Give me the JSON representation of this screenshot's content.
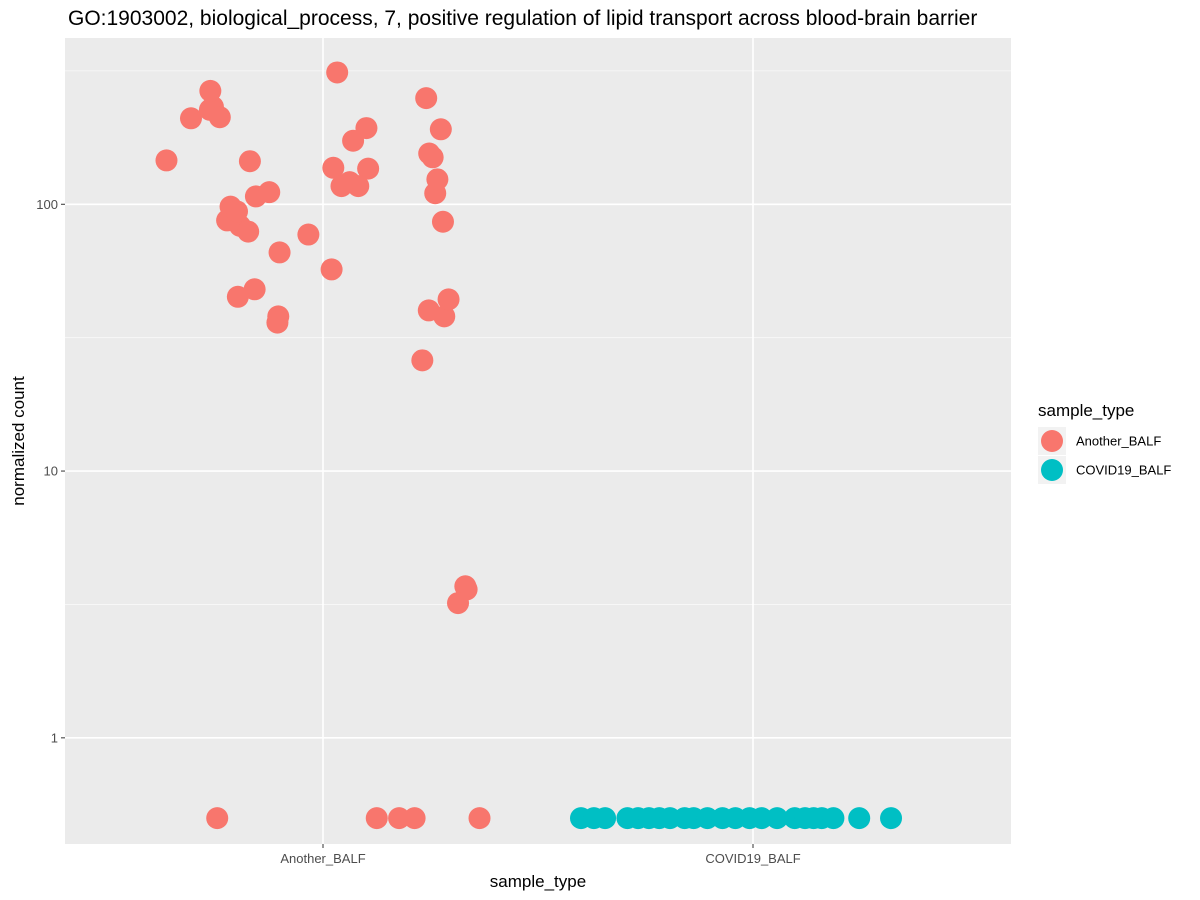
{
  "chart_data": {
    "type": "scatter",
    "title": "GO:1903002, biological_process, 7, positive regulation of lipid transport across blood-brain barrier",
    "xlabel": "sample_type",
    "ylabel": "normalized count",
    "y_scale": "log10",
    "ylim": [
      0.4,
      420
    ],
    "y_ticks": [
      1,
      10,
      100
    ],
    "y_tick_labels": [
      "1",
      "10",
      "100"
    ],
    "grid": true,
    "categories": [
      "Another_BALF",
      "COVID19_BALF"
    ],
    "legend": {
      "title": "sample_type",
      "placement": "right",
      "entries": [
        "Another_BALF",
        "COVID19_BALF"
      ]
    },
    "colors": {
      "Another_BALF": "#F8766D",
      "COVID19_BALF": "#00BFC4",
      "panel": "#EBEBEB",
      "grid": "#ffffff"
    },
    "series": [
      {
        "name": "Another_BALF",
        "x_jitter": [
          -0.364,
          -0.307,
          -0.263,
          -0.256,
          -0.24,
          -0.223,
          -0.193,
          -0.17,
          -0.215,
          -0.2,
          -0.156,
          -0.174,
          -0.101,
          -0.159,
          -0.104,
          -0.106,
          -0.198,
          -0.262,
          -0.125,
          -0.034,
          0.07,
          0.024,
          0.02,
          0.033,
          0.101,
          0.062,
          0.105,
          0.082,
          0.043,
          0.24,
          0.247,
          0.255,
          0.274,
          0.261,
          0.282,
          0.292,
          0.231,
          0.246,
          0.266,
          0.279,
          0.334,
          0.331,
          0.314,
          0.364,
          0.177,
          0.125,
          -0.246,
          0.213
        ],
        "values": [
          146,
          210,
          226,
          232,
          212,
          87,
          83,
          145,
          98,
          94,
          107,
          79,
          66,
          48,
          38,
          36,
          45,
          266,
          111,
          77,
          173,
          137,
          57,
          312,
          193,
          121,
          136,
          117,
          117,
          250,
          155,
          150,
          191,
          110,
          38,
          44,
          26,
          40,
          124,
          86,
          3.6,
          3.7,
          3.2,
          0.5,
          0.5,
          0.5,
          0.5,
          0.5
        ]
      },
      {
        "name": "COVID19_BALF",
        "x_jitter": [
          -0.4,
          -0.37,
          -0.344,
          -0.292,
          -0.267,
          -0.242,
          -0.218,
          -0.193,
          -0.159,
          -0.138,
          -0.106,
          -0.071,
          -0.041,
          -0.008,
          0.02,
          0.056,
          0.097,
          0.121,
          0.141,
          0.16,
          0.187,
          0.247,
          0.321
        ],
        "values": [
          0.5,
          0.5,
          0.5,
          0.5,
          0.5,
          0.5,
          0.5,
          0.5,
          0.5,
          0.5,
          0.5,
          0.5,
          0.5,
          0.5,
          0.5,
          0.5,
          0.5,
          0.5,
          0.5,
          0.5,
          0.5,
          0.5,
          0.5
        ]
      }
    ]
  }
}
